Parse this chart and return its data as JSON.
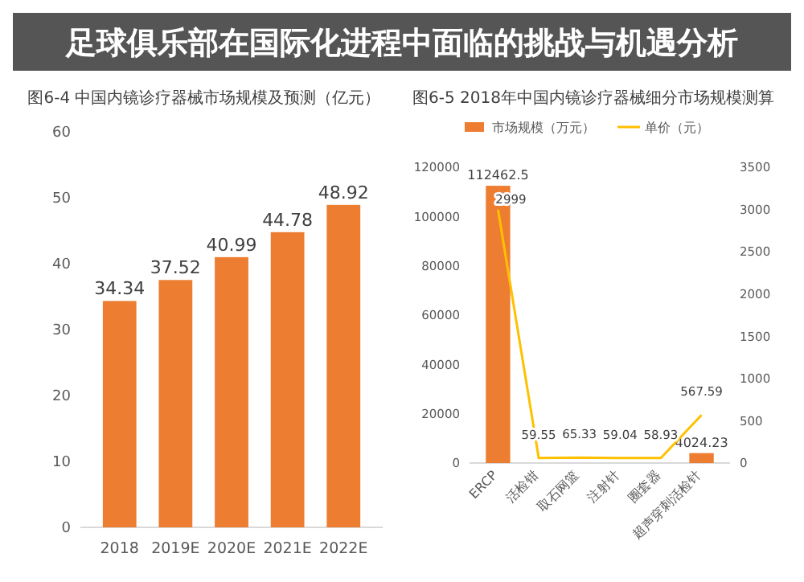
{
  "chart_data": [
    {
      "type": "other",
      "title": "足球俱乐部在国际化进程中面临的挑战与机遇分析"
    },
    {
      "type": "bar",
      "title": "图6-4 中国内镜诊疗器械市场规模及预测（亿元）",
      "categories": [
        "2018",
        "2019E",
        "2020E",
        "2021E",
        "2022E"
      ],
      "values": [
        34.34,
        37.52,
        40.99,
        44.78,
        48.92
      ],
      "color": "#ed7d31",
      "ylim": [
        0,
        60
      ],
      "yticks": [
        0,
        10,
        20,
        30,
        40,
        50,
        60
      ],
      "data_labels": true
    },
    {
      "type": "bar",
      "title": "图6-5 2018年中国内镜诊疗器械细分市场规模测算",
      "categories": [
        "ERCP",
        "活检钳",
        "取石网篮",
        "注射针",
        "圈套器",
        "超声穿刺活检针"
      ],
      "legend": "top",
      "ylim": [
        0,
        120000
      ],
      "yticks": [
        0,
        20000,
        40000,
        60000,
        80000,
        100000,
        120000
      ],
      "y2lim": [
        0,
        3500
      ],
      "y2ticks": [
        0,
        500,
        1000,
        1500,
        2000,
        2500,
        3000,
        3500
      ],
      "series": [
        {
          "name": "市场规模（万元）",
          "type": "bar",
          "color": "#ed7d31",
          "values": [
            112462.5,
            null,
            null,
            null,
            null,
            4024.23
          ],
          "value_labels": [
            "112462.5",
            null,
            null,
            null,
            null,
            "4024.23"
          ]
        },
        {
          "name": "单价（元）",
          "type": "line",
          "axis": "y2",
          "color": "#ffc000",
          "values": [
            2999,
            59.55,
            65.33,
            59.04,
            58.93,
            567.59
          ],
          "value_labels": [
            "2999",
            "59.55",
            "65.33",
            "59.04",
            "58.93",
            "567.59"
          ]
        }
      ]
    }
  ]
}
